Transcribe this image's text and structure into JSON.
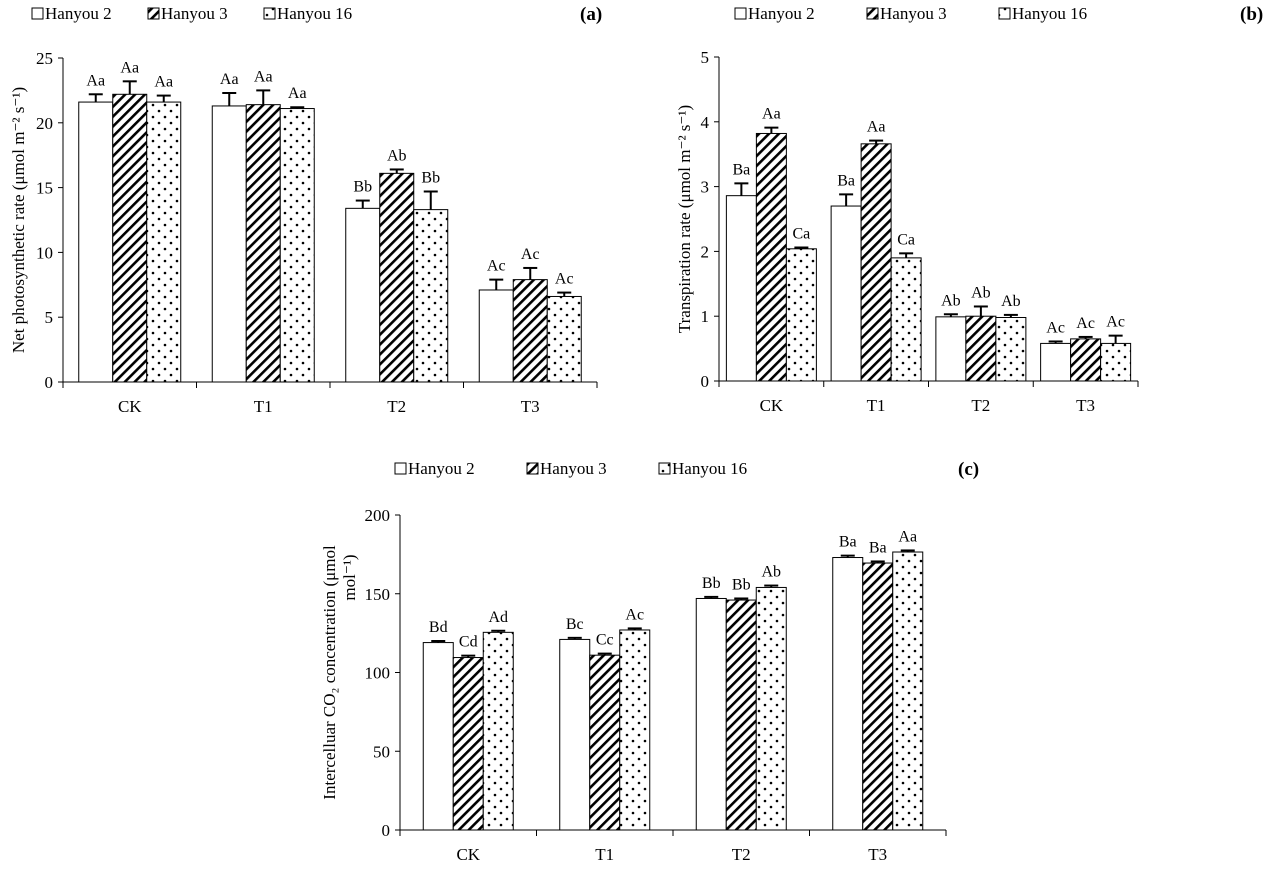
{
  "chart_data": [
    {
      "type": "bar",
      "panel": "(a)",
      "categories": [
        "CK",
        "T1",
        "T2",
        "T3"
      ],
      "ylabel": "Net photosynthetic rate (μmol m⁻² s⁻¹)",
      "ylim": [
        0,
        25
      ],
      "yticks": [
        0,
        5,
        10,
        15,
        20,
        25
      ],
      "legend_position": "top-left",
      "series": [
        {
          "name": "Hanyou 2",
          "values": [
            21.6,
            21.3,
            13.4,
            7.1
          ],
          "errors": [
            0.6,
            1.0,
            0.6,
            0.8
          ],
          "labels": [
            "Aa",
            "Aa",
            "Bb",
            "Ac"
          ]
        },
        {
          "name": "Hanyou 3",
          "values": [
            22.2,
            21.4,
            16.1,
            7.9
          ],
          "errors": [
            1.0,
            1.1,
            0.3,
            0.9
          ],
          "labels": [
            "Aa",
            "Aa",
            "Ab",
            "Ac"
          ]
        },
        {
          "name": "Hanyou 16",
          "values": [
            21.6,
            21.1,
            13.3,
            6.6
          ],
          "errors": [
            0.5,
            0.1,
            1.4,
            0.3
          ],
          "labels": [
            "Aa",
            "Aa",
            "Bb",
            "Ac"
          ]
        }
      ]
    },
    {
      "type": "bar",
      "panel": "(b)",
      "categories": [
        "CK",
        "T1",
        "T2",
        "T3"
      ],
      "ylabel": "Transpiration rate (μmol m⁻² s⁻¹)",
      "ylim": [
        0,
        5
      ],
      "yticks": [
        0,
        1,
        2,
        3,
        4,
        5
      ],
      "legend_position": "top-left",
      "series": [
        {
          "name": "Hanyou 2",
          "values": [
            2.86,
            2.7,
            0.99,
            0.58
          ],
          "errors": [
            0.19,
            0.18,
            0.04,
            0.03
          ],
          "labels": [
            "Ba",
            "Ba",
            "Ab",
            "Ac"
          ]
        },
        {
          "name": "Hanyou 3",
          "values": [
            3.82,
            3.66,
            1.0,
            0.65
          ],
          "errors": [
            0.09,
            0.05,
            0.15,
            0.03
          ],
          "labels": [
            "Aa",
            "Aa",
            "Ab",
            "Ac"
          ]
        },
        {
          "name": "Hanyou 16",
          "values": [
            2.04,
            1.9,
            0.98,
            0.58
          ],
          "errors": [
            0.02,
            0.07,
            0.04,
            0.12
          ],
          "labels": [
            "Ca",
            "Ca",
            "Ab",
            "Ac"
          ]
        }
      ]
    },
    {
      "type": "bar",
      "panel": "(c)",
      "categories": [
        "CK",
        "T1",
        "T2",
        "T3"
      ],
      "ylabel": "Intercelluar CO₂ concentration (μmol",
      "ylabel2": "mol⁻¹)",
      "ylim": [
        0,
        200
      ],
      "yticks": [
        0,
        50,
        100,
        150,
        200
      ],
      "legend_position": "top-left",
      "series": [
        {
          "name": "Hanyou 2",
          "values": [
            119,
            121,
            147,
            173
          ],
          "errors": [
            1,
            1,
            1,
            1.2
          ],
          "labels": [
            "Bd",
            "Bc",
            "Bb",
            "Ba"
          ]
        },
        {
          "name": "Hanyou 3",
          "values": [
            109.5,
            111,
            146,
            169.5
          ],
          "errors": [
            1.2,
            1,
            1,
            1
          ],
          "labels": [
            "Cd",
            "Cc",
            "Bb",
            "Ba"
          ]
        },
        {
          "name": "Hanyou 16",
          "values": [
            125.5,
            127,
            154,
            176.5
          ],
          "errors": [
            1,
            1,
            1.2,
            1
          ],
          "labels": [
            "Ad",
            "Ac",
            "Ab",
            "Aa"
          ]
        }
      ]
    }
  ]
}
